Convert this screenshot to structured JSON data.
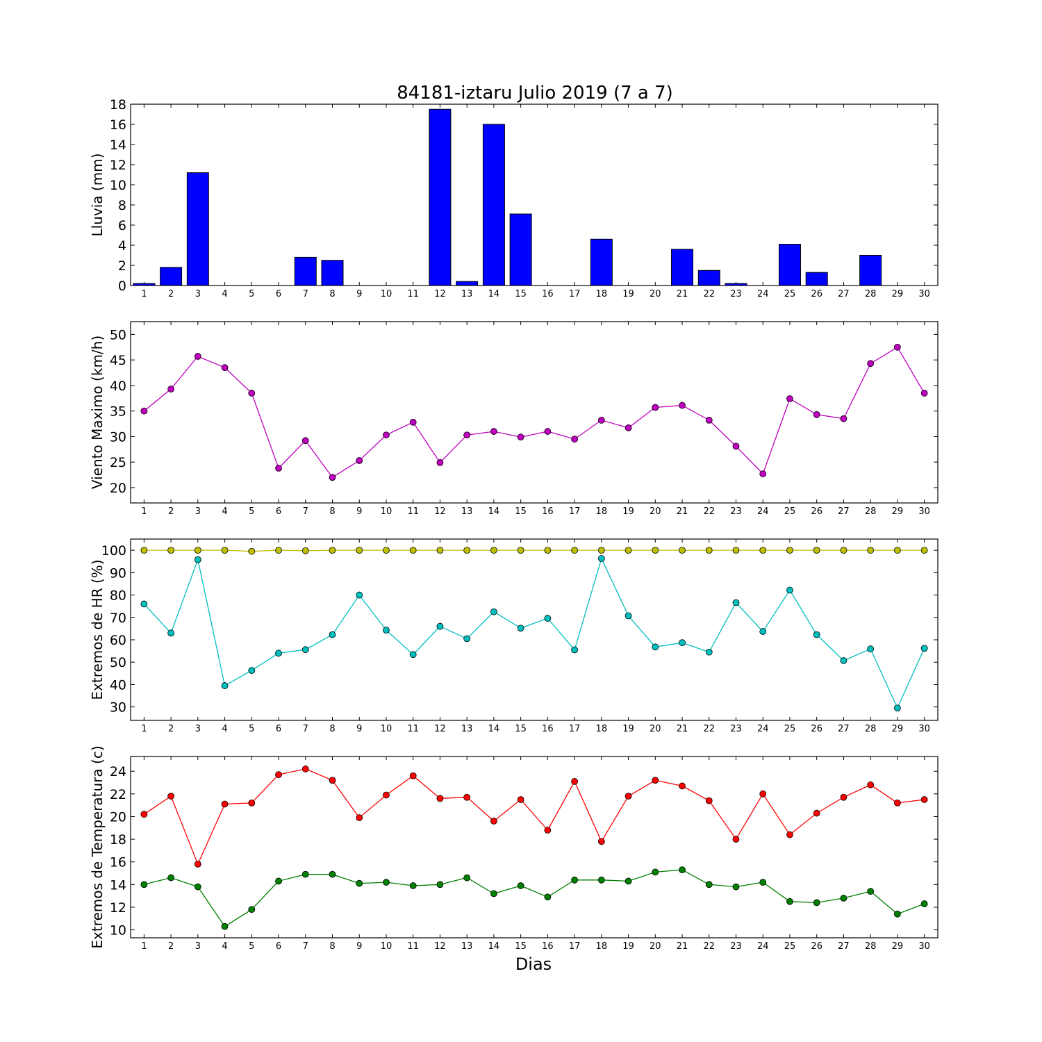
{
  "title": "84181-iztaru Julio 2019  (7 a 7)",
  "xlabel": "Dias",
  "chart_data": [
    {
      "type": "bar",
      "ylabel": "Lluvia (mm)",
      "categories": [
        "1",
        "2",
        "3",
        "4",
        "5",
        "6",
        "7",
        "8",
        "9",
        "10",
        "11",
        "12",
        "13",
        "14",
        "15",
        "16",
        "17",
        "18",
        "19",
        "20",
        "21",
        "22",
        "23",
        "24",
        "25",
        "26",
        "27",
        "28",
        "29",
        "30"
      ],
      "ylim": [
        0,
        18
      ],
      "yticks": [
        0,
        2,
        4,
        6,
        8,
        10,
        12,
        14,
        16,
        18
      ],
      "color": "#0000ff",
      "values": [
        0.2,
        1.8,
        11.2,
        0,
        0,
        0,
        2.8,
        2.5,
        0,
        0,
        0,
        17.5,
        0.4,
        16.0,
        7.1,
        0,
        0,
        4.6,
        0,
        0,
        3.6,
        1.5,
        0.2,
        0,
        4.1,
        1.3,
        0,
        3.0,
        0,
        0
      ]
    },
    {
      "type": "line",
      "ylabel": "Viento Maximo (km/h)",
      "categories": [
        "1",
        "2",
        "3",
        "4",
        "5",
        "6",
        "7",
        "8",
        "9",
        "10",
        "11",
        "12",
        "13",
        "14",
        "15",
        "16",
        "17",
        "18",
        "19",
        "20",
        "21",
        "22",
        "23",
        "24",
        "25",
        "26",
        "27",
        "28",
        "29",
        "30"
      ],
      "ylim": [
        17,
        52.5
      ],
      "yticks": [
        20,
        25,
        30,
        35,
        40,
        45,
        50
      ],
      "series": [
        {
          "color": "#bf00bf",
          "values": [
            35.0,
            39.3,
            45.7,
            43.5,
            38.5,
            23.8,
            29.2,
            22.0,
            25.3,
            30.3,
            32.8,
            24.9,
            30.3,
            31.0,
            29.9,
            31.0,
            29.5,
            33.2,
            31.7,
            35.7,
            36.1,
            33.2,
            28.1,
            22.7,
            37.4,
            34.3,
            33.5,
            44.3,
            47.5,
            38.5
          ]
        }
      ]
    },
    {
      "type": "line",
      "ylabel": "Extremos de HR (%)",
      "categories": [
        "1",
        "2",
        "3",
        "4",
        "5",
        "6",
        "7",
        "8",
        "9",
        "10",
        "11",
        "12",
        "13",
        "14",
        "15",
        "16",
        "17",
        "18",
        "19",
        "20",
        "21",
        "22",
        "23",
        "24",
        "25",
        "26",
        "27",
        "28",
        "29",
        "30"
      ],
      "ylim": [
        24,
        105
      ],
      "yticks": [
        30,
        40,
        50,
        60,
        70,
        80,
        90,
        100
      ],
      "series": [
        {
          "color": "#bfbf00",
          "values": [
            100,
            100,
            100,
            100,
            99.5,
            100,
            99.8,
            100,
            100,
            100,
            100,
            100,
            100,
            100,
            100,
            100,
            100,
            100,
            100,
            100,
            100,
            100,
            100,
            100,
            100,
            100,
            100,
            100,
            100,
            100
          ]
        },
        {
          "color": "#00bfbf",
          "values": [
            76.0,
            63.0,
            95.8,
            39.5,
            46.3,
            54.0,
            55.6,
            62.3,
            80.0,
            64.3,
            53.4,
            66.0,
            60.5,
            72.5,
            65.2,
            69.6,
            55.5,
            96.3,
            70.7,
            56.8,
            58.7,
            54.5,
            76.6,
            63.7,
            82.2,
            62.3,
            50.7,
            55.9,
            29.5,
            56.2
          ]
        }
      ]
    },
    {
      "type": "line",
      "ylabel": "Extremos de Temperatura (c)",
      "categories": [
        "1",
        "2",
        "3",
        "4",
        "5",
        "6",
        "7",
        "8",
        "9",
        "10",
        "11",
        "12",
        "13",
        "14",
        "15",
        "16",
        "17",
        "18",
        "19",
        "20",
        "21",
        "22",
        "23",
        "24",
        "25",
        "26",
        "27",
        "28",
        "29",
        "30"
      ],
      "ylim": [
        9.3,
        25.3
      ],
      "yticks": [
        10,
        12,
        14,
        16,
        18,
        20,
        22,
        24
      ],
      "series": [
        {
          "color": "#ff0000",
          "values": [
            20.2,
            21.8,
            15.8,
            21.1,
            21.2,
            23.7,
            24.2,
            23.2,
            19.9,
            21.9,
            23.6,
            21.6,
            21.7,
            19.6,
            21.5,
            18.8,
            23.1,
            17.8,
            21.8,
            23.2,
            22.7,
            21.4,
            18.0,
            22.0,
            18.4,
            20.3,
            21.7,
            22.8,
            21.2,
            21.5
          ]
        },
        {
          "color": "#008000",
          "values": [
            14.0,
            14.6,
            13.8,
            10.3,
            11.8,
            14.3,
            14.9,
            14.9,
            14.1,
            14.2,
            13.9,
            14.0,
            14.6,
            13.2,
            13.9,
            12.9,
            14.4,
            14.4,
            14.3,
            15.1,
            15.3,
            14.0,
            13.8,
            14.2,
            12.5,
            12.4,
            12.8,
            13.4,
            11.4,
            12.3
          ]
        }
      ]
    }
  ]
}
